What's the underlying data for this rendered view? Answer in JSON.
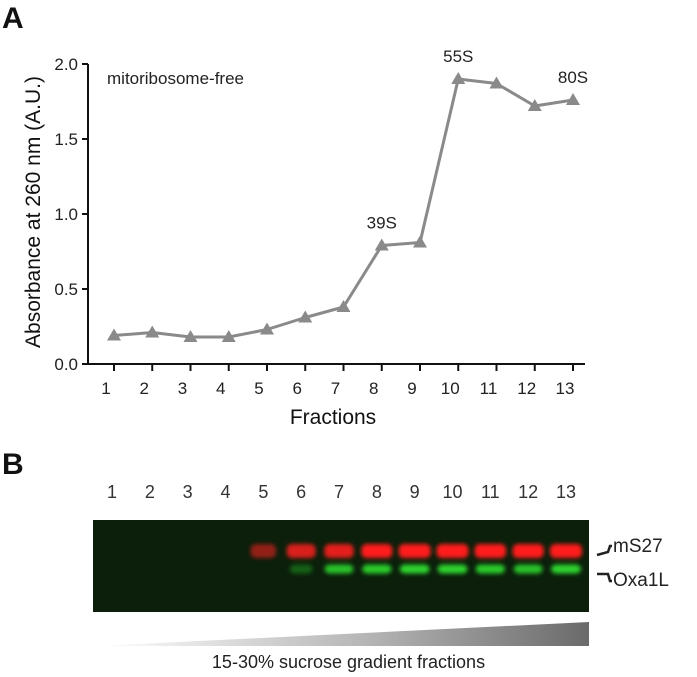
{
  "panel_a": {
    "letter": "A",
    "chart_data": {
      "type": "line",
      "title": "",
      "xlabel": "Fractions",
      "ylabel": "Absorbance at 260 nm (A.U.)",
      "x": [
        1,
        2,
        3,
        4,
        5,
        6,
        7,
        8,
        9,
        10,
        11,
        12,
        13
      ],
      "series": [
        {
          "values": [
            0.19,
            0.21,
            0.18,
            0.18,
            0.23,
            0.31,
            0.38,
            0.79,
            0.81,
            1.9,
            1.87,
            1.72,
            1.76
          ],
          "color": "#8a8a8a"
        }
      ],
      "ylim": [
        0,
        2.0
      ],
      "yticks": [
        0.0,
        0.5,
        1.0,
        1.5,
        2.0
      ],
      "ytick_labels": [
        "0.0",
        "0.5",
        "1.0",
        "1.5",
        "2.0"
      ],
      "xticks": [
        1,
        2,
        3,
        4,
        5,
        6,
        7,
        8,
        9,
        10,
        11,
        12,
        13
      ],
      "xtick_labels": [
        "1",
        "2",
        "3",
        "4",
        "5",
        "6",
        "7",
        "8",
        "9",
        "10",
        "11",
        "12",
        "13"
      ],
      "annotations": [
        {
          "text": "mitoribosome-free"
        },
        {
          "text": "39S",
          "x": 8
        },
        {
          "text": "55S",
          "x": 10
        },
        {
          "text": "80S",
          "x": 13
        }
      ],
      "marker": "triangle",
      "grid": false
    }
  },
  "panel_b": {
    "letter": "B",
    "lanes": [
      "1",
      "2",
      "3",
      "4",
      "5",
      "6",
      "7",
      "8",
      "9",
      "10",
      "11",
      "12",
      "13"
    ],
    "bands": [
      {
        "label": "mS27",
        "color": "#ff1e1e",
        "intensity": [
          0,
          0,
          0,
          0,
          0.35,
          0.7,
          0.75,
          0.9,
          1.0,
          1.0,
          0.95,
          0.92,
          1.0
        ]
      },
      {
        "label": "Oxa1L",
        "color": "#2ee02e",
        "intensity": [
          0,
          0,
          0,
          0,
          0,
          0.1,
          0.7,
          0.75,
          0.8,
          0.8,
          0.75,
          0.7,
          0.8
        ]
      }
    ],
    "blot_background": "#0b1f0b",
    "caption": "15-30% sucrose gradient fractions"
  }
}
